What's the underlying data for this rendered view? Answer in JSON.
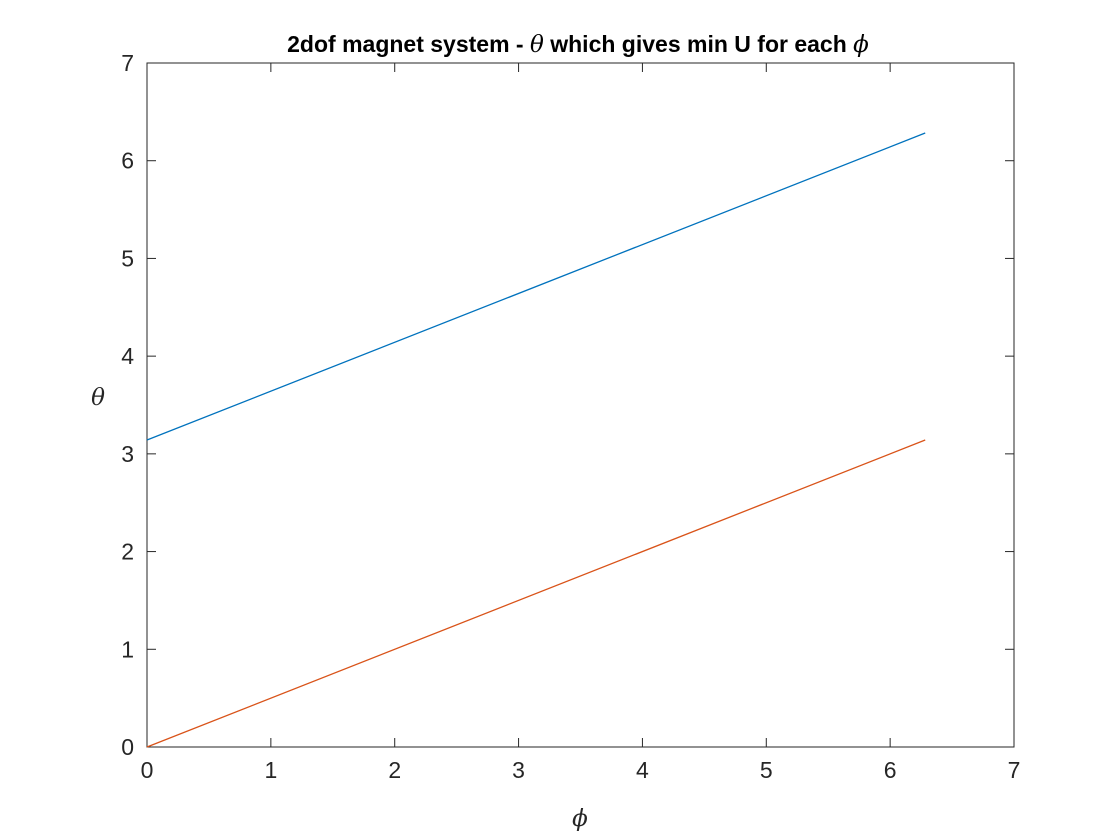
{
  "chart_data": {
    "type": "line",
    "title": {
      "prefix": "2dof magnet system - ",
      "symbol1": "θ",
      "middle": " which gives min U for each ",
      "symbol2": "ϕ"
    },
    "xlabel": "ϕ",
    "ylabel": "θ",
    "xlim": [
      0,
      7
    ],
    "ylim": [
      0,
      7
    ],
    "xticks": [
      0,
      1,
      2,
      3,
      4,
      5,
      6,
      7
    ],
    "yticks": [
      0,
      1,
      2,
      3,
      4,
      5,
      6,
      7
    ],
    "grid": false,
    "series": [
      {
        "name": "theta-upper",
        "color": "#0072BD",
        "x": [
          0,
          6.2832
        ],
        "y": [
          3.1416,
          6.2832
        ]
      },
      {
        "name": "theta-lower",
        "color": "#D95319",
        "x": [
          0,
          6.2832
        ],
        "y": [
          0,
          3.1416
        ]
      }
    ]
  }
}
